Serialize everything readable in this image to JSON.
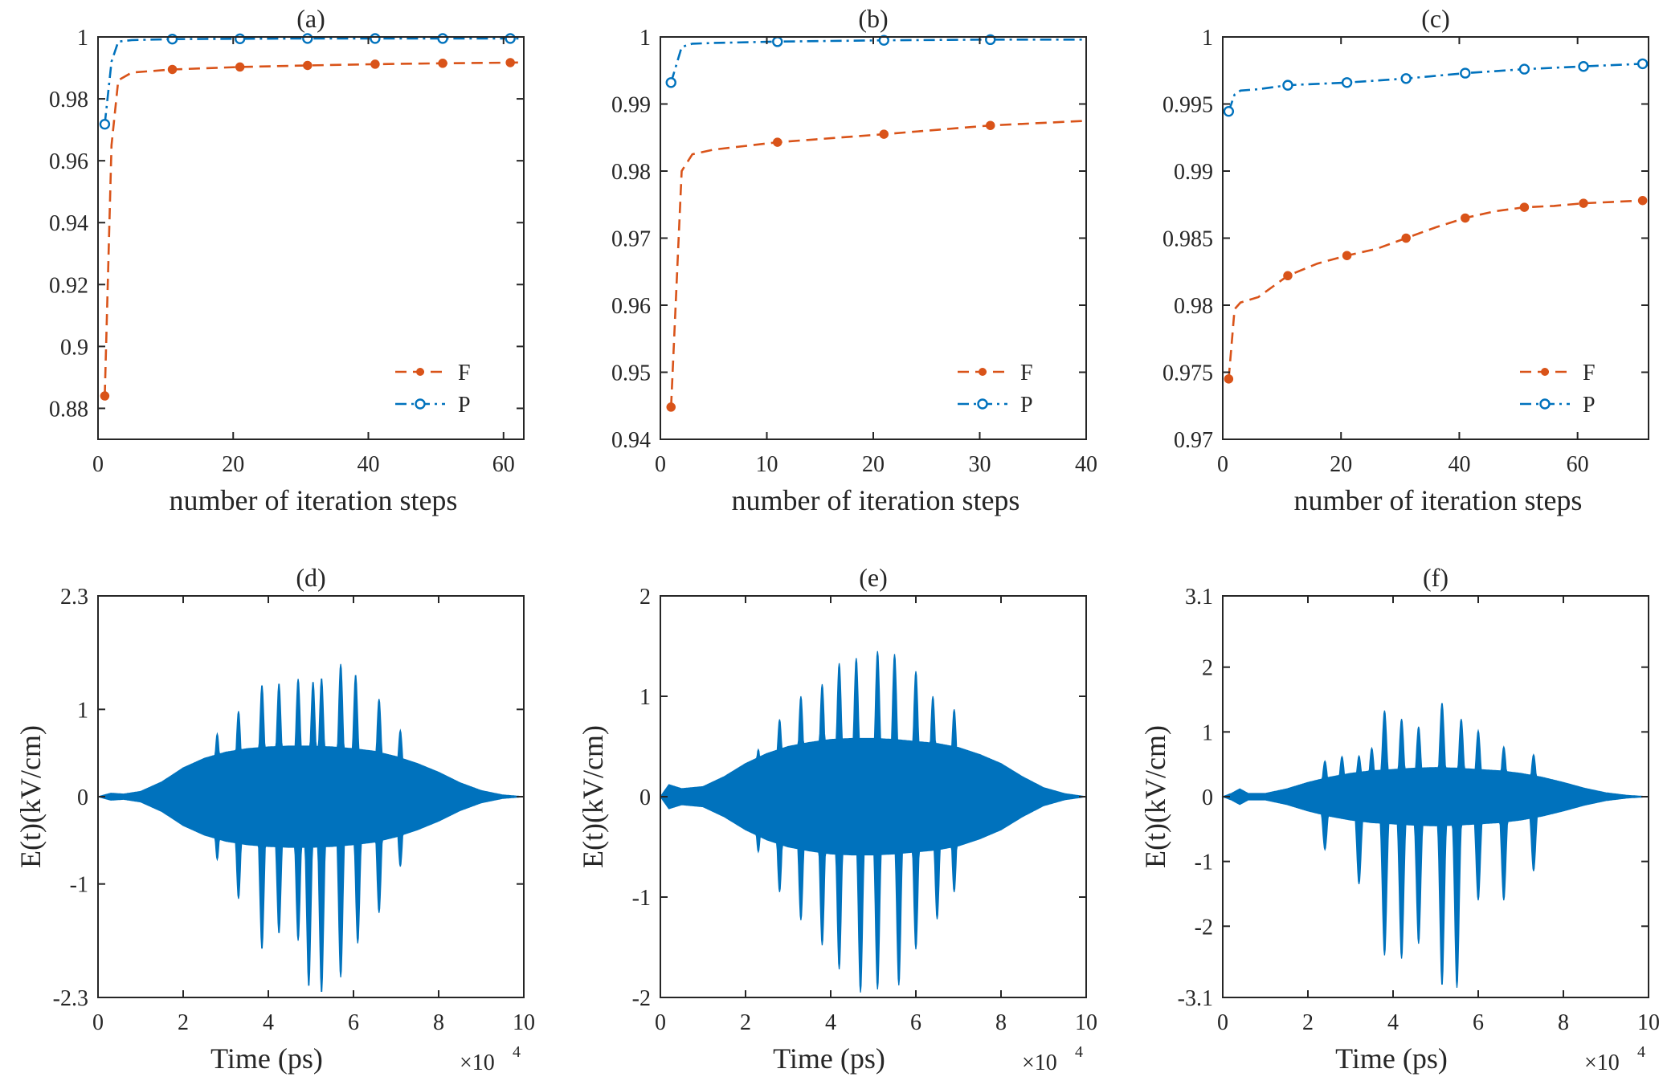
{
  "figure": {
    "colors": {
      "F": "#D95319",
      "P": "#0072BD",
      "axis": "#262626"
    }
  },
  "chart_data": [
    {
      "panel": "a",
      "type": "line",
      "title": "(a)",
      "xlabel": "number of iteration steps",
      "ylabel": "",
      "xlim": [
        0,
        63
      ],
      "ylim": [
        0.87,
        1.0
      ],
      "xticks": [
        0,
        20,
        40,
        60
      ],
      "yticks": [
        0.88,
        0.9,
        0.92,
        0.94,
        0.96,
        0.98,
        1
      ],
      "ytick_labels": [
        "0.88",
        "0.9",
        "0.92",
        "0.94",
        "0.96",
        "0.98",
        "1"
      ],
      "legend": "bottom-right",
      "series": [
        {
          "name": "F",
          "x": [
            1,
            2,
            3,
            5,
            11,
            21,
            31,
            41,
            51,
            61,
            63
          ],
          "y": [
            0.884,
            0.965,
            0.986,
            0.9885,
            0.9895,
            0.9903,
            0.9908,
            0.9912,
            0.9915,
            0.9917,
            0.9918
          ],
          "markers_x": [
            1,
            11,
            21,
            31,
            41,
            51,
            61
          ],
          "markers_y": [
            0.884,
            0.9895,
            0.9903,
            0.9908,
            0.9912,
            0.9915,
            0.9917
          ]
        },
        {
          "name": "P",
          "x": [
            1,
            2,
            3,
            5,
            11,
            21,
            31,
            41,
            51,
            61,
            63
          ],
          "y": [
            0.9718,
            0.992,
            0.9985,
            0.999,
            0.9993,
            0.9994,
            0.9995,
            0.9995,
            0.9995,
            0.9995,
            0.9995
          ],
          "markers_x": [
            1,
            11,
            21,
            31,
            41,
            51,
            61
          ],
          "markers_y": [
            0.9718,
            0.9993,
            0.9994,
            0.9995,
            0.9995,
            0.9995,
            0.9995
          ]
        }
      ]
    },
    {
      "panel": "b",
      "type": "line",
      "title": "(b)",
      "xlabel": "number of iteration steps",
      "ylabel": "",
      "xlim": [
        0,
        40
      ],
      "ylim": [
        0.94,
        1.0
      ],
      "xticks": [
        0,
        10,
        20,
        30,
        40
      ],
      "yticks": [
        0.94,
        0.95,
        0.96,
        0.97,
        0.98,
        0.99,
        1
      ],
      "ytick_labels": [
        "0.94",
        "0.95",
        "0.96",
        "0.97",
        "0.98",
        "0.99",
        "1"
      ],
      "legend": "bottom-right",
      "series": [
        {
          "name": "F",
          "x": [
            1,
            2,
            3,
            5,
            11,
            21,
            31,
            40
          ],
          "y": [
            0.9448,
            0.98,
            0.9825,
            0.9832,
            0.9843,
            0.9855,
            0.9868,
            0.9875
          ],
          "markers_x": [
            1,
            11,
            21,
            31
          ],
          "markers_y": [
            0.9448,
            0.9843,
            0.9855,
            0.9868
          ]
        },
        {
          "name": "P",
          "x": [
            1,
            2,
            3,
            5,
            11,
            21,
            31,
            40
          ],
          "y": [
            0.9932,
            0.9985,
            0.999,
            0.9991,
            0.9993,
            0.9995,
            0.9996,
            0.9996
          ],
          "markers_x": [
            1,
            11,
            21,
            31
          ],
          "markers_y": [
            0.9932,
            0.9993,
            0.9995,
            0.9996
          ]
        }
      ]
    },
    {
      "panel": "c",
      "type": "line",
      "title": "(c)",
      "xlabel": "number of iteration steps",
      "ylabel": "",
      "xlim": [
        0,
        72
      ],
      "ylim": [
        0.97,
        1.0
      ],
      "xticks": [
        0,
        20,
        40,
        60
      ],
      "yticks": [
        0.97,
        0.975,
        0.98,
        0.985,
        0.99,
        0.995,
        1
      ],
      "ytick_labels": [
        "0.97",
        "0.975",
        "0.98",
        "0.985",
        "0.99",
        "0.995",
        "1"
      ],
      "legend": "bottom-right",
      "series": [
        {
          "name": "F",
          "x": [
            1,
            2,
            3,
            6,
            11,
            16,
            21,
            26,
            31,
            36,
            41,
            46,
            51,
            56,
            61,
            66,
            71
          ],
          "y": [
            0.9745,
            0.9797,
            0.9802,
            0.9806,
            0.9822,
            0.9831,
            0.9837,
            0.9842,
            0.985,
            0.9858,
            0.9865,
            0.987,
            0.9873,
            0.9874,
            0.9876,
            0.9877,
            0.9878
          ],
          "markers_x": [
            1,
            11,
            21,
            31,
            41,
            51,
            61,
            71
          ],
          "markers_y": [
            0.9745,
            0.9822,
            0.9837,
            0.985,
            0.9865,
            0.9873,
            0.9876,
            0.9878
          ]
        },
        {
          "name": "P",
          "x": [
            1,
            2,
            3,
            6,
            11,
            21,
            31,
            41,
            51,
            61,
            71
          ],
          "y": [
            0.99445,
            0.9957,
            0.996,
            0.9961,
            0.9964,
            0.9966,
            0.9969,
            0.9973,
            0.9976,
            0.9978,
            0.998
          ],
          "markers_x": [
            1,
            11,
            21,
            31,
            41,
            51,
            61,
            71
          ],
          "markers_y": [
            0.99445,
            0.9964,
            0.9966,
            0.9969,
            0.9973,
            0.9976,
            0.9978,
            0.998
          ]
        }
      ]
    },
    {
      "panel": "d",
      "type": "area",
      "title": "(d)",
      "xlabel": "Time (ps)",
      "ylabel": "E(t)(kV/cm)",
      "x_exponent_label": "×10",
      "x_exponent": "4",
      "xlim": [
        0,
        10
      ],
      "ylim": [
        -2.3,
        2.3
      ],
      "xticks": [
        0,
        2,
        4,
        6,
        8,
        10
      ],
      "yticks": [
        -2.3,
        -1,
        0,
        1,
        2.3
      ],
      "ytick_labels": [
        "-2.3",
        "-1",
        "0",
        "1",
        "2.3"
      ],
      "envelope": {
        "x": [
          0,
          0.3,
          0.6,
          1,
          1.5,
          2,
          2.5,
          3,
          3.5,
          4,
          4.5,
          5,
          5.5,
          6,
          6.5,
          7,
          7.5,
          8,
          8.5,
          9,
          9.5,
          10
        ],
        "amp": [
          0,
          0.04,
          0.03,
          0.06,
          0.17,
          0.33,
          0.44,
          0.51,
          0.55,
          0.57,
          0.58,
          0.58,
          0.57,
          0.55,
          0.52,
          0.46,
          0.38,
          0.28,
          0.16,
          0.07,
          0.02,
          0
        ]
      },
      "peaks_upper": [
        {
          "x": 2.8,
          "y": 0.72
        },
        {
          "x": 3.3,
          "y": 0.98
        },
        {
          "x": 3.85,
          "y": 1.28
        },
        {
          "x": 4.25,
          "y": 1.3
        },
        {
          "x": 4.7,
          "y": 1.35
        },
        {
          "x": 5.05,
          "y": 1.32
        },
        {
          "x": 5.25,
          "y": 1.36
        },
        {
          "x": 5.7,
          "y": 1.52
        },
        {
          "x": 6.05,
          "y": 1.4
        },
        {
          "x": 6.6,
          "y": 1.12
        },
        {
          "x": 7.1,
          "y": 0.76
        }
      ],
      "peaks_lower": [
        {
          "x": 2.8,
          "y": -0.72
        },
        {
          "x": 3.3,
          "y": -1.17
        },
        {
          "x": 3.85,
          "y": -1.75
        },
        {
          "x": 4.25,
          "y": -1.57
        },
        {
          "x": 4.7,
          "y": -1.65
        },
        {
          "x": 4.95,
          "y": -2.18
        },
        {
          "x": 5.25,
          "y": -2.25
        },
        {
          "x": 5.7,
          "y": -2.07
        },
        {
          "x": 6.1,
          "y": -1.68
        },
        {
          "x": 6.6,
          "y": -1.33
        },
        {
          "x": 7.1,
          "y": -0.8
        }
      ]
    },
    {
      "panel": "e",
      "type": "area",
      "title": "(e)",
      "xlabel": "Time (ps)",
      "ylabel": "E(t)(kV/cm)",
      "x_exponent_label": "×10",
      "x_exponent": "4",
      "xlim": [
        0,
        10
      ],
      "ylim": [
        -2,
        2
      ],
      "xticks": [
        0,
        2,
        4,
        6,
        8,
        10
      ],
      "yticks": [
        -2,
        -1,
        0,
        1,
        2
      ],
      "ytick_labels": [
        "-2",
        "-1",
        "0",
        "1",
        "2"
      ],
      "envelope": {
        "x": [
          0,
          0.2,
          0.5,
          1,
          1.5,
          2,
          2.5,
          3,
          3.5,
          4,
          4.5,
          5,
          5.5,
          6,
          6.5,
          7,
          7.5,
          8,
          8.5,
          9,
          9.5,
          10
        ],
        "amp": [
          0,
          0.12,
          0.08,
          0.1,
          0.2,
          0.33,
          0.43,
          0.5,
          0.54,
          0.57,
          0.58,
          0.58,
          0.57,
          0.55,
          0.53,
          0.49,
          0.42,
          0.33,
          0.2,
          0.09,
          0.03,
          0
        ]
      },
      "peaks_upper": [
        {
          "x": 2.3,
          "y": 0.47
        },
        {
          "x": 2.8,
          "y": 0.77
        },
        {
          "x": 3.3,
          "y": 1.0
        },
        {
          "x": 3.8,
          "y": 1.12
        },
        {
          "x": 4.2,
          "y": 1.33
        },
        {
          "x": 4.6,
          "y": 1.38
        },
        {
          "x": 5.1,
          "y": 1.45
        },
        {
          "x": 5.5,
          "y": 1.42
        },
        {
          "x": 6.0,
          "y": 1.25
        },
        {
          "x": 6.4,
          "y": 1.0
        },
        {
          "x": 6.9,
          "y": 0.87
        }
      ],
      "peaks_lower": [
        {
          "x": 2.3,
          "y": -0.55
        },
        {
          "x": 2.8,
          "y": -0.95
        },
        {
          "x": 3.3,
          "y": -1.23
        },
        {
          "x": 3.8,
          "y": -1.48
        },
        {
          "x": 4.2,
          "y": -1.72
        },
        {
          "x": 4.7,
          "y": -1.95
        },
        {
          "x": 5.1,
          "y": -1.92
        },
        {
          "x": 5.6,
          "y": -1.88
        },
        {
          "x": 6.0,
          "y": -1.52
        },
        {
          "x": 6.5,
          "y": -1.22
        },
        {
          "x": 6.9,
          "y": -0.95
        }
      ]
    },
    {
      "panel": "f",
      "type": "area",
      "title": "(f)",
      "xlabel": "Time (ps)",
      "ylabel": "E(t)(kV/cm)",
      "x_exponent_label": "×10",
      "x_exponent": "4",
      "xlim": [
        0,
        10
      ],
      "ylim": [
        -3.1,
        3.1
      ],
      "xticks": [
        0,
        2,
        4,
        6,
        8,
        10
      ],
      "yticks": [
        -3.1,
        -2,
        -1,
        0,
        1,
        2,
        3.1
      ],
      "ytick_labels": [
        "-3.1",
        "-2",
        "-1",
        "0",
        "1",
        "2",
        "3.1"
      ],
      "envelope": {
        "x": [
          0,
          0.2,
          0.4,
          0.6,
          1,
          1.5,
          2,
          2.5,
          3,
          3.5,
          4,
          4.5,
          5,
          5.5,
          6,
          6.5,
          7,
          7.5,
          8,
          8.5,
          9,
          9.5,
          10
        ],
        "amp": [
          0,
          0.05,
          0.12,
          0.05,
          0.05,
          0.12,
          0.22,
          0.3,
          0.36,
          0.4,
          0.42,
          0.44,
          0.45,
          0.44,
          0.42,
          0.4,
          0.36,
          0.3,
          0.22,
          0.13,
          0.06,
          0.02,
          0
        ]
      },
      "peaks_upper": [
        {
          "x": 2.4,
          "y": 0.55
        },
        {
          "x": 2.8,
          "y": 0.62
        },
        {
          "x": 3.2,
          "y": 0.63
        },
        {
          "x": 3.5,
          "y": 0.75
        },
        {
          "x": 3.8,
          "y": 1.33
        },
        {
          "x": 4.2,
          "y": 1.2
        },
        {
          "x": 4.6,
          "y": 1.08
        },
        {
          "x": 5.15,
          "y": 1.45
        },
        {
          "x": 5.6,
          "y": 1.2
        },
        {
          "x": 6.0,
          "y": 1.02
        },
        {
          "x": 6.6,
          "y": 0.77
        },
        {
          "x": 7.3,
          "y": 0.65
        }
      ],
      "peaks_lower": [
        {
          "x": 2.4,
          "y": -0.82
        },
        {
          "x": 3.2,
          "y": -1.35
        },
        {
          "x": 3.8,
          "y": -2.45
        },
        {
          "x": 4.2,
          "y": -2.5
        },
        {
          "x": 4.6,
          "y": -2.27
        },
        {
          "x": 5.15,
          "y": -2.92
        },
        {
          "x": 5.5,
          "y": -2.95
        },
        {
          "x": 6.0,
          "y": -1.6
        },
        {
          "x": 6.6,
          "y": -1.6
        },
        {
          "x": 7.3,
          "y": -1.15
        }
      ]
    }
  ]
}
